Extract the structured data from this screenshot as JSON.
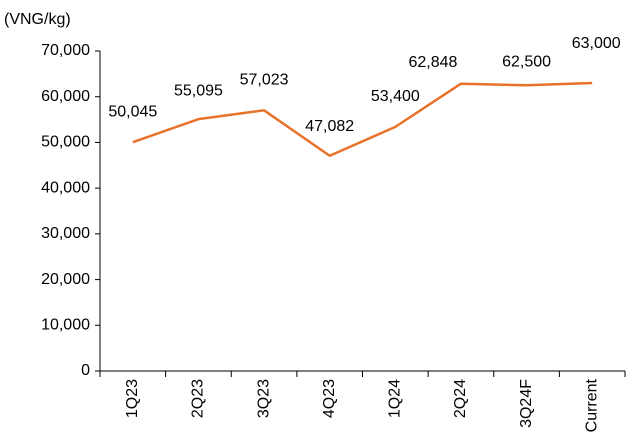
{
  "chart_data": {
    "type": "line",
    "y_axis_label": "(VNG/kg)",
    "categories": [
      "1Q23",
      "2Q23",
      "3Q23",
      "4Q23",
      "1Q24",
      "2Q24",
      "3Q24F",
      "Current"
    ],
    "series": [
      {
        "name": "Price",
        "color": "#e8722a",
        "values": [
          50045,
          55095,
          57023,
          47082,
          53400,
          62848,
          62500,
          63000
        ],
        "value_labels": [
          "50,045",
          "55,095",
          "57,023",
          "47,082",
          "53,400",
          "62,848",
          "62,500",
          "63,000"
        ]
      }
    ],
    "ylim": [
      0,
      70000
    ],
    "yticks": [
      {
        "value": 0,
        "label": "0"
      },
      {
        "value": 10000,
        "label": "10,000"
      },
      {
        "value": 20000,
        "label": "20,000"
      },
      {
        "value": 30000,
        "label": "30,000"
      },
      {
        "value": 40000,
        "label": "40,000"
      },
      {
        "value": 50000,
        "label": "50,000"
      },
      {
        "value": 60000,
        "label": "60,000"
      },
      {
        "value": 70000,
        "label": "70,000"
      }
    ],
    "grid": false
  }
}
